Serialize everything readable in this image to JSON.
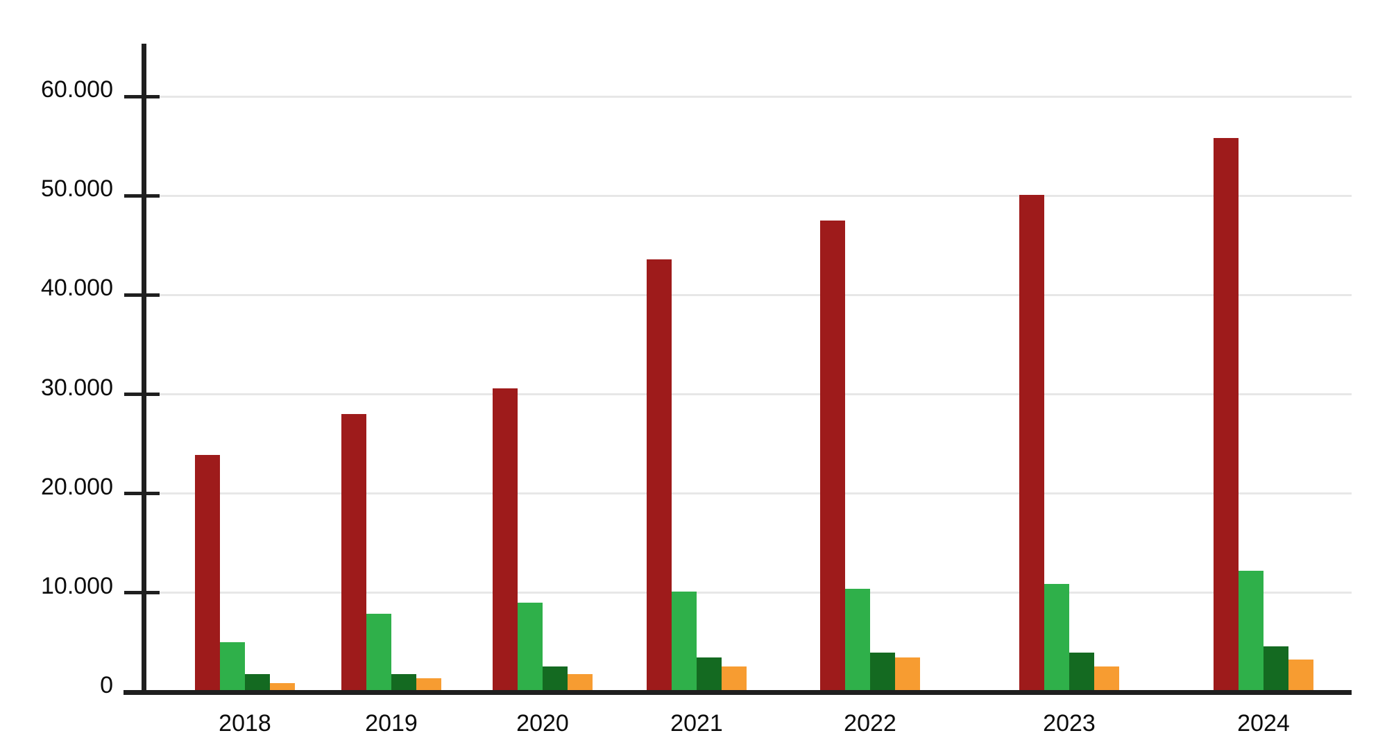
{
  "chart_data": {
    "type": "bar",
    "title": "",
    "categories": [
      "2018",
      "2019",
      "2020",
      "2021",
      "2022",
      "2023",
      "2024"
    ],
    "series": [
      {
        "name": "dark-red",
        "color": "#9E1B1B",
        "values": [
          23900,
          28000,
          30600,
          43600,
          47500,
          50100,
          55800
        ]
      },
      {
        "name": "green",
        "color": "#2FB04A",
        "values": [
          5000,
          7900,
          9000,
          10100,
          10400,
          10900,
          12200
        ]
      },
      {
        "name": "dark-green",
        "color": "#146A21",
        "values": [
          1800,
          1800,
          2600,
          3500,
          4000,
          4000,
          4600
        ]
      },
      {
        "name": "orange",
        "color": "#F79C31",
        "values": [
          900,
          1400,
          1800,
          2600,
          3500,
          2600,
          3300
        ]
      }
    ],
    "y_axis": {
      "ticks": [
        {
          "value": 0,
          "label": "0"
        },
        {
          "value": 10000,
          "label": "10.000"
        },
        {
          "value": 20000,
          "label": "20.000"
        },
        {
          "value": 30000,
          "label": "30.000"
        },
        {
          "value": 40000,
          "label": "40.000"
        },
        {
          "value": 50000,
          "label": "50.000"
        },
        {
          "value": 60000,
          "label": "60.000"
        }
      ],
      "range": [
        0,
        65000
      ],
      "number_format": "dot-thousands"
    },
    "x_axis": {
      "labels": [
        "2018",
        "2019",
        "2020",
        "2021",
        "2022",
        "2023",
        "2024"
      ]
    },
    "legend": "none",
    "grid": true,
    "colors": {
      "axis": "#1F1F1F",
      "gridline": "#E7E7E7",
      "label_text": "#0B0B0B",
      "background": "#FFFFFF"
    }
  }
}
